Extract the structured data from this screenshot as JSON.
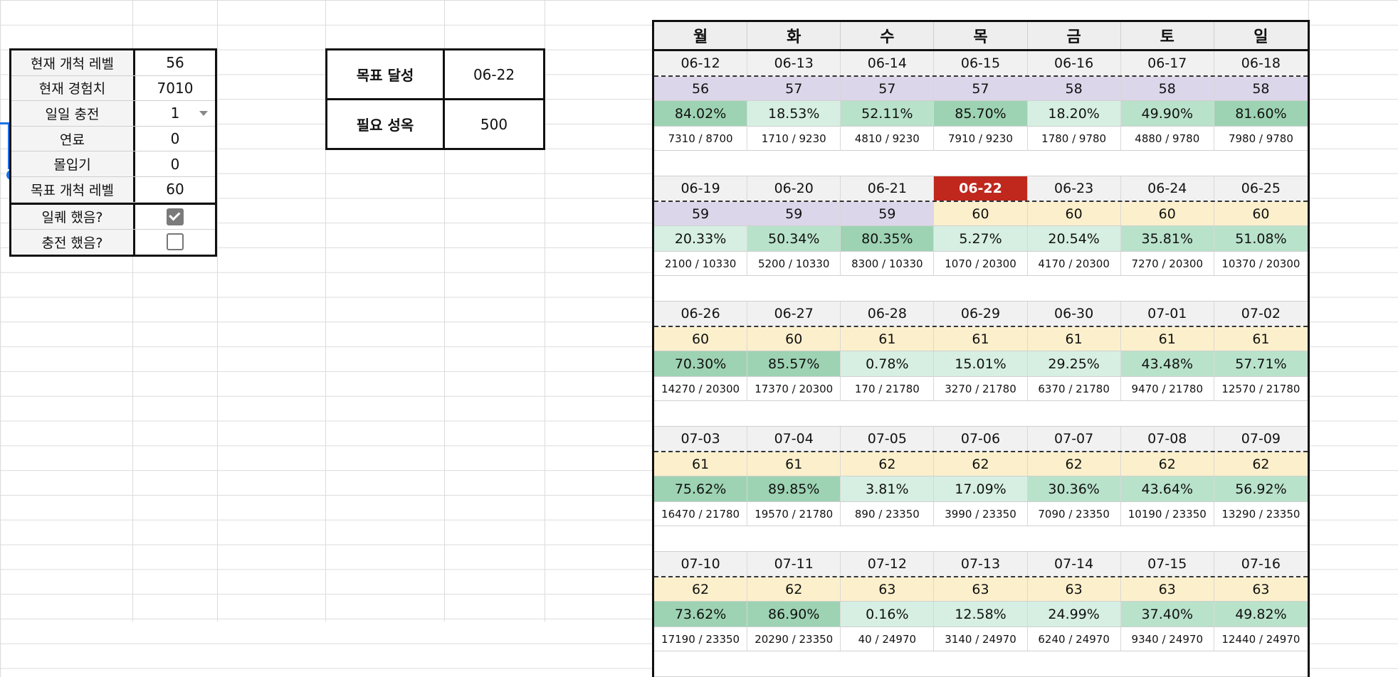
{
  "info": {
    "rows": [
      {
        "label": "현재 개척 레벨",
        "value": "56"
      },
      {
        "label": "현재 경험치",
        "value": "7010"
      },
      {
        "label": "일일 충전",
        "value": "1"
      },
      {
        "label": "연료",
        "value": "0"
      },
      {
        "label": "몰입기",
        "value": "0"
      },
      {
        "label": "목표 개척 레벨",
        "value": "60"
      }
    ],
    "checks": [
      {
        "label": "일퀘 했음?",
        "checked": true
      },
      {
        "label": "충전 했음?",
        "checked": false
      }
    ]
  },
  "goal": {
    "achieve_label": "목표 달성",
    "achieve_value": "06-22",
    "need_label": "필요 성옥",
    "need_value": "500"
  },
  "calendar": {
    "weekdays": [
      "월",
      "화",
      "수",
      "목",
      "금",
      "토",
      "일"
    ],
    "today": "06-22",
    "colors": {
      "today": "#c0281e",
      "level_low": "#dcd6ea",
      "level_high": "#fcf0cc",
      "pct_low": "#d6efe2",
      "pct_mid": "#b9e2cb",
      "pct_high": "#9dd3b3"
    },
    "weeks": [
      {
        "dates": [
          "06-12",
          "06-13",
          "06-14",
          "06-15",
          "06-16",
          "06-17",
          "06-18"
        ],
        "levels": [
          "56",
          "57",
          "57",
          "57",
          "58",
          "58",
          "58"
        ],
        "pcts": [
          "84.02%",
          "18.53%",
          "52.11%",
          "85.70%",
          "18.20%",
          "49.90%",
          "81.60%"
        ],
        "exps": [
          "7310 / 8700",
          "1710 / 9230",
          "4810 / 9230",
          "7910 / 9230",
          "1780 / 9780",
          "4880 / 9780",
          "7980 / 9780"
        ]
      },
      {
        "dates": [
          "06-19",
          "06-20",
          "06-21",
          "06-22",
          "06-23",
          "06-24",
          "06-25"
        ],
        "levels": [
          "59",
          "59",
          "59",
          "60",
          "60",
          "60",
          "60"
        ],
        "pcts": [
          "20.33%",
          "50.34%",
          "80.35%",
          "5.27%",
          "20.54%",
          "35.81%",
          "51.08%"
        ],
        "exps": [
          "2100 / 10330",
          "5200 / 10330",
          "8300 / 10330",
          "1070 / 20300",
          "4170 / 20300",
          "7270 / 20300",
          "10370 / 20300"
        ]
      },
      {
        "dates": [
          "06-26",
          "06-27",
          "06-28",
          "06-29",
          "06-30",
          "07-01",
          "07-02"
        ],
        "levels": [
          "60",
          "60",
          "61",
          "61",
          "61",
          "61",
          "61"
        ],
        "pcts": [
          "70.30%",
          "85.57%",
          "0.78%",
          "15.01%",
          "29.25%",
          "43.48%",
          "57.71%"
        ],
        "exps": [
          "14270 / 20300",
          "17370 / 20300",
          "170 / 21780",
          "3270 / 21780",
          "6370 / 21780",
          "9470 / 21780",
          "12570 / 21780"
        ]
      },
      {
        "dates": [
          "07-03",
          "07-04",
          "07-05",
          "07-06",
          "07-07",
          "07-08",
          "07-09"
        ],
        "levels": [
          "61",
          "61",
          "62",
          "62",
          "62",
          "62",
          "62"
        ],
        "pcts": [
          "75.62%",
          "89.85%",
          "3.81%",
          "17.09%",
          "30.36%",
          "43.64%",
          "56.92%"
        ],
        "exps": [
          "16470 / 21780",
          "19570 / 21780",
          "890 / 23350",
          "3990 / 23350",
          "7090 / 23350",
          "10190 / 23350",
          "13290 / 23350"
        ]
      },
      {
        "dates": [
          "07-10",
          "07-11",
          "07-12",
          "07-13",
          "07-14",
          "07-15",
          "07-16"
        ],
        "levels": [
          "62",
          "62",
          "63",
          "63",
          "63",
          "63",
          "63"
        ],
        "pcts": [
          "73.62%",
          "86.90%",
          "0.16%",
          "12.58%",
          "24.99%",
          "37.40%",
          "49.82%"
        ],
        "exps": [
          "17190 / 23350",
          "20290 / 23350",
          "40 / 24970",
          "3140 / 24970",
          "6240 / 24970",
          "9340 / 24970",
          "12440 / 24970"
        ]
      }
    ]
  }
}
